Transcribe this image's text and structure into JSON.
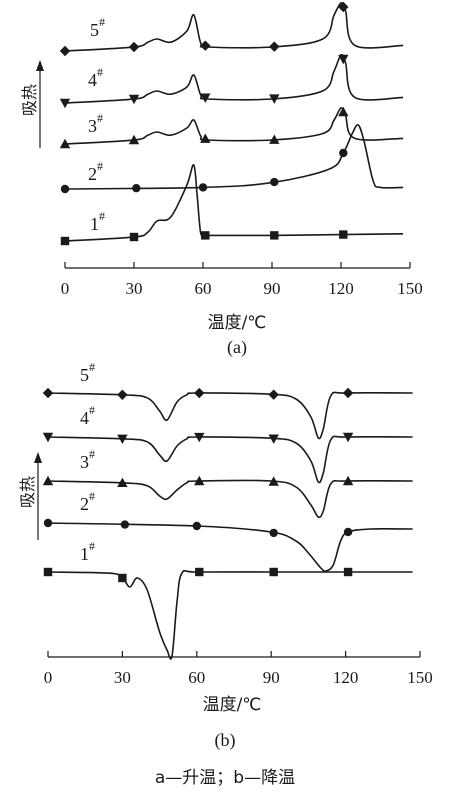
{
  "chart_data": [
    {
      "type": "line",
      "sublabel": "(a)",
      "xlabel": "温度/℃",
      "ylabel": "吸热",
      "xlim": [
        0,
        150
      ],
      "xticks": [
        0,
        30,
        60,
        90,
        120,
        150
      ],
      "series": [
        {
          "name": "1#",
          "marker": "square",
          "x": [
            0,
            30,
            36,
            40,
            46,
            53,
            56,
            57.5,
            59,
            61,
            62,
            90,
            120,
            147
          ],
          "y": [
            -0.05,
            0.0,
            0.06,
            0.2,
            0.25,
            0.65,
            0.9,
            0.5,
            0.05,
            0.02,
            0.02,
            0.02,
            0.03,
            0.04
          ],
          "marker_x": [
            0,
            30,
            61,
            91,
            121
          ]
        },
        {
          "name": "2#",
          "marker": "circle",
          "x": [
            0,
            60,
            90,
            115,
            121,
            125,
            127.5,
            130,
            134,
            137,
            147
          ],
          "y": [
            0.0,
            0.02,
            0.08,
            0.25,
            0.45,
            0.7,
            0.8,
            0.6,
            0.1,
            0.02,
            0.02
          ],
          "marker_x": [
            0,
            31,
            60,
            91,
            121
          ]
        },
        {
          "name": "3#",
          "marker": "triangle-up",
          "x": [
            0,
            30,
            36,
            40,
            46,
            53,
            56,
            59,
            62,
            90,
            112,
            117,
            120,
            122,
            126,
            147
          ],
          "y": [
            -0.05,
            0.0,
            0.06,
            0.1,
            0.06,
            0.15,
            0.25,
            0.05,
            0.0,
            0.0,
            0.08,
            0.25,
            0.4,
            0.3,
            0.02,
            0.02
          ],
          "marker_x": [
            0,
            30,
            61,
            91,
            121
          ]
        },
        {
          "name": "4#",
          "marker": "triangle-down",
          "x": [
            0,
            30,
            36,
            40,
            46,
            53,
            56,
            59,
            62,
            90,
            112,
            117,
            120,
            122,
            126,
            147
          ],
          "y": [
            -0.05,
            0.0,
            0.06,
            0.1,
            0.06,
            0.15,
            0.3,
            0.05,
            0.0,
            0.0,
            0.1,
            0.35,
            0.55,
            0.45,
            0.02,
            0.02
          ],
          "marker_x": [
            0,
            30,
            61,
            91,
            121
          ]
        },
        {
          "name": "5#",
          "marker": "diamond",
          "x": [
            0,
            30,
            36,
            40,
            46,
            53,
            56,
            59,
            62,
            90,
            112,
            117,
            120,
            122,
            126,
            147
          ],
          "y": [
            -0.05,
            0.0,
            0.06,
            0.1,
            0.06,
            0.2,
            0.4,
            0.05,
            0.0,
            0.0,
            0.1,
            0.4,
            0.55,
            0.45,
            0.02,
            0.02
          ],
          "marker_x": [
            0,
            30,
            61,
            91,
            121
          ]
        }
      ]
    },
    {
      "type": "line",
      "sublabel": "(b)",
      "xlabel": "温度/℃",
      "ylabel": "吸热",
      "xlim": [
        0,
        150
      ],
      "xticks": [
        0,
        30,
        60,
        90,
        120,
        150
      ],
      "series": [
        {
          "name": "1#",
          "marker": "square",
          "x": [
            0,
            25,
            30,
            33,
            36,
            40,
            45,
            48,
            50,
            52,
            54,
            60,
            90,
            120,
            147
          ],
          "y": [
            0.0,
            -0.02,
            -0.1,
            -0.25,
            -0.1,
            -0.3,
            -1.0,
            -1.3,
            -1.4,
            -0.5,
            -0.02,
            0.0,
            0.0,
            0.0,
            0.0
          ],
          "marker_x": [
            0,
            30,
            61,
            91,
            121
          ]
        },
        {
          "name": "2#",
          "marker": "circle",
          "x": [
            0,
            60,
            90,
            100,
            105,
            110,
            112,
            115,
            118,
            121,
            130,
            147
          ],
          "y": [
            0.0,
            -0.05,
            -0.15,
            -0.3,
            -0.5,
            -0.75,
            -0.8,
            -0.7,
            -0.3,
            -0.15,
            -0.1,
            -0.1
          ],
          "marker_x": [
            0,
            31,
            60,
            91,
            121
          ]
        },
        {
          "name": "3#",
          "marker": "triangle-up",
          "x": [
            0,
            30,
            40,
            45,
            48,
            52,
            56,
            60,
            90,
            100,
            106,
            109,
            111,
            114,
            120,
            147
          ],
          "y": [
            0.0,
            -0.03,
            -0.08,
            -0.25,
            -0.3,
            -0.15,
            -0.03,
            0.0,
            0.0,
            -0.1,
            -0.4,
            -0.6,
            -0.5,
            -0.05,
            0.0,
            0.0
          ],
          "marker_x": [
            0,
            30,
            61,
            91,
            121
          ]
        },
        {
          "name": "4#",
          "marker": "triangle-down",
          "x": [
            0,
            30,
            40,
            45,
            48,
            52,
            56,
            60,
            90,
            100,
            106,
            109,
            111,
            114,
            120,
            147
          ],
          "y": [
            0.0,
            -0.03,
            -0.08,
            -0.3,
            -0.4,
            -0.15,
            -0.03,
            0.0,
            -0.02,
            -0.1,
            -0.4,
            -0.75,
            -0.6,
            -0.05,
            0.0,
            0.0
          ],
          "marker_x": [
            0,
            30,
            61,
            91,
            121
          ]
        },
        {
          "name": "5#",
          "marker": "diamond",
          "x": [
            0,
            30,
            40,
            45,
            48,
            52,
            56,
            60,
            90,
            100,
            106,
            109,
            111,
            114,
            120,
            147
          ],
          "y": [
            0.0,
            -0.03,
            -0.08,
            -0.3,
            -0.45,
            -0.15,
            -0.03,
            0.0,
            -0.02,
            -0.1,
            -0.4,
            -0.75,
            -0.6,
            -0.05,
            0.0,
            0.0
          ],
          "marker_x": [
            0,
            30,
            61,
            91,
            121
          ]
        }
      ]
    }
  ],
  "caption": "a—升温；b—降温"
}
